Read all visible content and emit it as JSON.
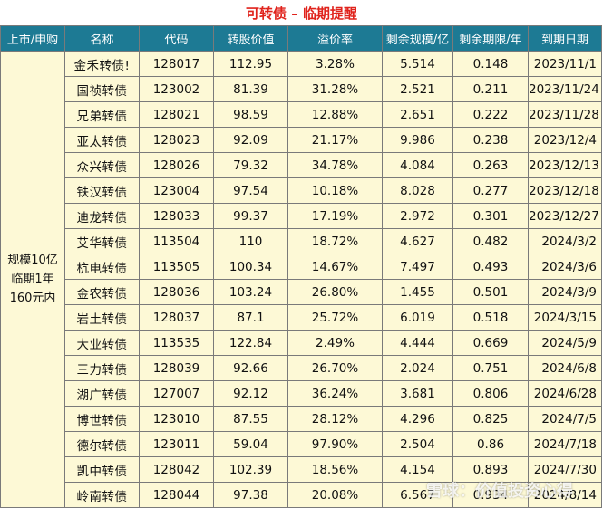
{
  "title": "可转债 – 临期提醒",
  "headers": [
    "上市/申购",
    "名称",
    "代码",
    "转股价值",
    "溢价率",
    "剩余规模/亿",
    "剩余期限/年",
    "到期日期"
  ],
  "group": [
    "规模10亿",
    "临期1年",
    "160元内"
  ],
  "rows": [
    {
      "name": "金禾转债!",
      "code": "128017",
      "conv": "112.95",
      "premium": "3.28%",
      "size": "5.514",
      "term": "0.148",
      "date": "2023/11/1"
    },
    {
      "name": "国祯转债",
      "code": "123002",
      "conv": "81.39",
      "premium": "31.28%",
      "size": "2.521",
      "term": "0.211",
      "date": "2023/11/24"
    },
    {
      "name": "兄弟转债",
      "code": "128021",
      "conv": "98.59",
      "premium": "12.88%",
      "size": "2.651",
      "term": "0.222",
      "date": "2023/11/28"
    },
    {
      "name": "亚太转债",
      "code": "128023",
      "conv": "92.09",
      "premium": "21.17%",
      "size": "9.986",
      "term": "0.238",
      "date": "2023/12/4"
    },
    {
      "name": "众兴转债",
      "code": "128026",
      "conv": "79.32",
      "premium": "34.78%",
      "size": "4.084",
      "term": "0.263",
      "date": "2023/12/13"
    },
    {
      "name": "铁汉转债",
      "code": "123004",
      "conv": "97.54",
      "premium": "10.18%",
      "size": "8.028",
      "term": "0.277",
      "date": "2023/12/18"
    },
    {
      "name": "迪龙转债",
      "code": "128033",
      "conv": "99.37",
      "premium": "17.19%",
      "size": "2.972",
      "term": "0.301",
      "date": "2023/12/27"
    },
    {
      "name": "艾华转债",
      "code": "113504",
      "conv": "110",
      "premium": "18.72%",
      "size": "4.627",
      "term": "0.482",
      "date": "2024/3/2"
    },
    {
      "name": "杭电转债",
      "code": "113505",
      "conv": "100.34",
      "premium": "14.67%",
      "size": "7.497",
      "term": "0.493",
      "date": "2024/3/6"
    },
    {
      "name": "金农转债",
      "code": "128036",
      "conv": "103.24",
      "premium": "26.80%",
      "size": "1.455",
      "term": "0.501",
      "date": "2024/3/9"
    },
    {
      "name": "岩土转债",
      "code": "128037",
      "conv": "87.1",
      "premium": "25.72%",
      "size": "6.019",
      "term": "0.518",
      "date": "2024/3/15"
    },
    {
      "name": "大业转债",
      "code": "113535",
      "conv": "122.84",
      "premium": "2.49%",
      "size": "4.444",
      "term": "0.669",
      "date": "2024/5/9"
    },
    {
      "name": "三力转债",
      "code": "128039",
      "conv": "92.66",
      "premium": "26.70%",
      "size": "2.024",
      "term": "0.751",
      "date": "2024/6/8"
    },
    {
      "name": "湖广转债",
      "code": "127007",
      "conv": "92.12",
      "premium": "36.24%",
      "size": "3.681",
      "term": "0.806",
      "date": "2024/6/28"
    },
    {
      "name": "博世转债",
      "code": "123010",
      "conv": "87.55",
      "premium": "28.12%",
      "size": "4.296",
      "term": "0.825",
      "date": "2024/7/5"
    },
    {
      "name": "德尔转债",
      "code": "123011",
      "conv": "59.04",
      "premium": "97.90%",
      "size": "2.504",
      "term": "0.86",
      "date": "2024/7/18"
    },
    {
      "name": "凯中转债",
      "code": "128042",
      "conv": "102.39",
      "premium": "18.56%",
      "size": "4.154",
      "term": "0.893",
      "date": "2024/7/30"
    },
    {
      "name": "岭南转债",
      "code": "128044",
      "conv": "97.38",
      "premium": "20.08%",
      "size": "6.567",
      "term": "0.934",
      "date": "2024/8/14"
    }
  ],
  "watermark": "雪球：价值投资心得",
  "colors": {
    "header_bg": "#1d7a94",
    "row_bg": "#fdf9d6",
    "title_text": "#e0231c"
  }
}
